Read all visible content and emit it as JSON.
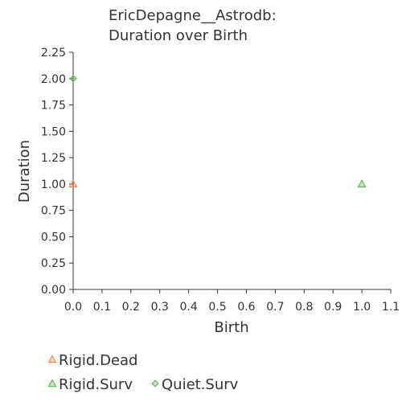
{
  "chart_data": {
    "type": "scatter",
    "title": [
      "EricDepagne__Astrodb:",
      "Duration over Birth"
    ],
    "xlabel": "Birth",
    "ylabel": "Duration",
    "xlim": [
      0,
      1.1
    ],
    "ylim": [
      0,
      2.25
    ],
    "x_ticks": [
      "0.0",
      "0.1",
      "0.2",
      "0.3",
      "0.4",
      "0.5",
      "0.6",
      "0.7",
      "0.8",
      "0.9",
      "1.0",
      "1.1"
    ],
    "y_ticks": [
      "0.00",
      "0.25",
      "0.50",
      "0.75",
      "1.00",
      "1.25",
      "1.50",
      "1.75",
      "2.00",
      "2.25"
    ],
    "grid": false,
    "legend_position": "bottom-left",
    "series": [
      {
        "name": "Rigid.Dead",
        "marker": "triangle",
        "color": "#f08a5d",
        "points": [
          {
            "x": 0.0,
            "y": 1.0
          }
        ]
      },
      {
        "name": "Rigid.Surv",
        "marker": "triangle",
        "color": "#5cb85c",
        "points": [
          {
            "x": 1.0,
            "y": 1.0
          }
        ]
      },
      {
        "name": "Quiet.Surv",
        "marker": "diamond",
        "color": "#5cb85c",
        "points": [
          {
            "x": 0.0,
            "y": 2.0
          }
        ]
      }
    ]
  }
}
